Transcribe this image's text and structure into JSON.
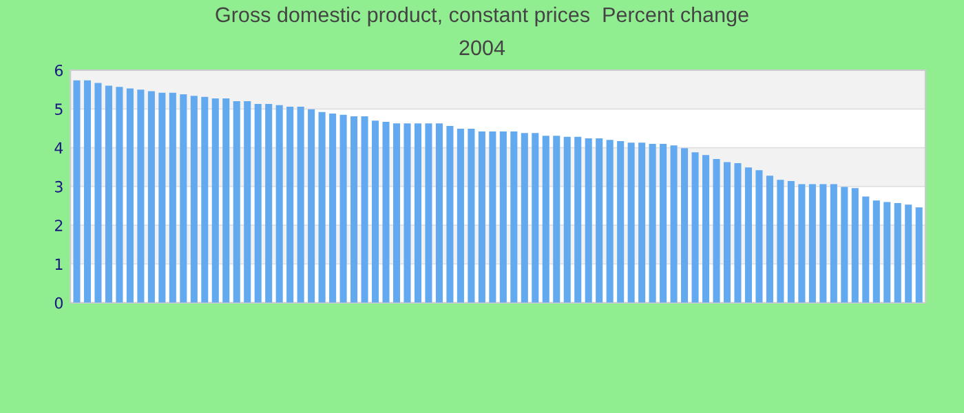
{
  "chart_data": {
    "type": "bar",
    "title": "Gross domestic product, constant prices  Percent change",
    "subtitle": "2004",
    "categories": [
      null,
      null,
      null,
      null,
      null,
      null,
      null,
      null,
      null,
      null,
      null,
      null,
      null,
      null,
      null,
      null,
      null,
      null,
      null,
      null,
      null,
      null,
      null,
      null,
      null,
      null,
      null,
      null,
      null,
      null,
      null,
      null,
      null,
      null,
      null,
      null,
      null,
      null,
      null,
      null,
      null,
      null,
      null,
      null,
      null,
      null,
      null,
      null,
      null,
      null,
      null,
      null,
      null,
      null,
      null,
      null,
      null,
      null,
      null,
      null,
      null,
      null,
      null,
      null,
      null,
      null,
      null,
      null,
      null,
      null,
      null,
      null,
      null,
      null,
      null,
      null,
      null,
      null,
      null,
      null
    ],
    "values": [
      5.74,
      5.74,
      5.67,
      5.6,
      5.57,
      5.53,
      5.5,
      5.46,
      5.42,
      5.42,
      5.38,
      5.34,
      5.31,
      5.27,
      5.27,
      5.2,
      5.2,
      5.13,
      5.13,
      5.1,
      5.06,
      5.06,
      4.99,
      4.92,
      4.88,
      4.85,
      4.81,
      4.81,
      4.7,
      4.67,
      4.63,
      4.63,
      4.63,
      4.63,
      4.63,
      4.56,
      4.49,
      4.49,
      4.42,
      4.42,
      4.42,
      4.42,
      4.38,
      4.38,
      4.31,
      4.31,
      4.28,
      4.28,
      4.24,
      4.24,
      4.2,
      4.17,
      4.13,
      4.13,
      4.1,
      4.1,
      4.06,
      3.99,
      3.88,
      3.81,
      3.71,
      3.63,
      3.6,
      3.49,
      3.42,
      3.28,
      3.17,
      3.14,
      3.06,
      3.06,
      3.06,
      3.06,
      2.99,
      2.96,
      2.74,
      2.64,
      2.6,
      2.57,
      2.53,
      2.46
    ],
    "color": "#63a9f0",
    "ylim": [
      0,
      6
    ],
    "yticks": [
      0,
      1,
      2,
      3,
      4,
      5,
      6
    ],
    "grid": "y"
  }
}
